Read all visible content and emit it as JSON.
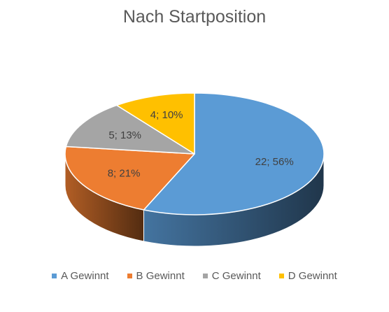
{
  "chart_data": {
    "type": "pie",
    "title": "Nach Startposition",
    "three_d": true,
    "legend_position": "bottom",
    "slices": [
      {
        "name": "A Gewinnt",
        "value": 22,
        "percent": "56%",
        "label": "22; 56%",
        "color": "#5B9BD5"
      },
      {
        "name": "B Gewinnt",
        "value": 8,
        "percent": "21%",
        "label": "8; 21%",
        "color": "#ED7D31"
      },
      {
        "name": "C Gewinnt",
        "value": 5,
        "percent": "13%",
        "label": "5; 13%",
        "color": "#A5A5A5"
      },
      {
        "name": "D Gewinnt",
        "value": 4,
        "percent": "10%",
        "label": "4; 10%",
        "color": "#FFC000"
      }
    ]
  }
}
